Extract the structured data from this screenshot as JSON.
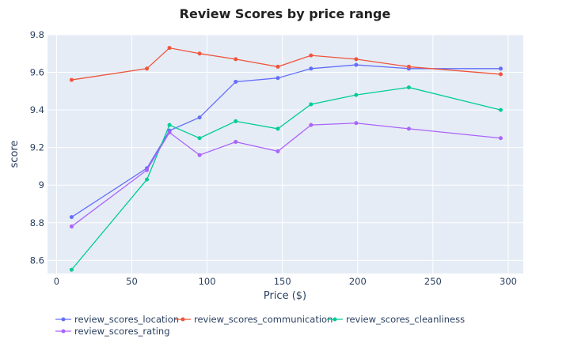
{
  "chart_data": {
    "type": "line",
    "title": "Review Scores by price range",
    "xlabel": "Price ($)",
    "ylabel": "score",
    "xlim": [
      -6,
      310
    ],
    "ylim": [
      8.53,
      9.8
    ],
    "x_ticks": [
      0,
      50,
      100,
      150,
      200,
      250,
      300
    ],
    "x_tick_labels": [
      "0",
      "50",
      "100",
      "150",
      "200",
      "250",
      "300"
    ],
    "y_ticks": [
      8.6,
      8.8,
      9.0,
      9.2,
      9.4,
      9.6,
      9.8
    ],
    "y_tick_labels": [
      "8.6",
      "8.8",
      "9",
      "9.2",
      "9.4",
      "9.6",
      "9.8"
    ],
    "grid": true,
    "legend_position": "bottom",
    "x": [
      10,
      60,
      75,
      95,
      119,
      147,
      169,
      199,
      234,
      295
    ],
    "series": [
      {
        "name": "review_scores_location",
        "color": "#636efa",
        "values": [
          8.83,
          9.09,
          9.29,
          9.36,
          9.55,
          9.57,
          9.62,
          9.64,
          9.62,
          9.62
        ]
      },
      {
        "name": "review_scores_communication",
        "color": "#ef553b",
        "values": [
          9.56,
          9.62,
          9.73,
          9.7,
          9.67,
          9.63,
          9.69,
          9.67,
          9.63,
          9.59
        ]
      },
      {
        "name": "review_scores_cleanliness",
        "color": "#00cc96",
        "values": [
          8.55,
          9.03,
          9.32,
          9.25,
          9.34,
          9.3,
          9.43,
          9.48,
          9.52,
          9.4
        ]
      },
      {
        "name": "review_scores_rating",
        "color": "#ab63fa",
        "values": [
          8.78,
          9.08,
          9.28,
          9.16,
          9.23,
          9.18,
          9.32,
          9.33,
          9.3,
          9.25
        ]
      }
    ]
  }
}
